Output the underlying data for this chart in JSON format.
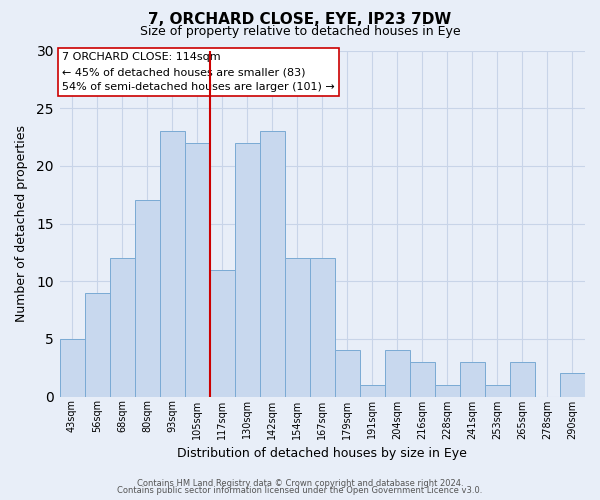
{
  "title": "7, ORCHARD CLOSE, EYE, IP23 7DW",
  "subtitle": "Size of property relative to detached houses in Eye",
  "xlabel": "Distribution of detached houses by size in Eye",
  "ylabel": "Number of detached properties",
  "bar_labels": [
    "43sqm",
    "56sqm",
    "68sqm",
    "80sqm",
    "93sqm",
    "105sqm",
    "117sqm",
    "130sqm",
    "142sqm",
    "154sqm",
    "167sqm",
    "179sqm",
    "191sqm",
    "204sqm",
    "216sqm",
    "228sqm",
    "241sqm",
    "253sqm",
    "265sqm",
    "278sqm",
    "290sqm"
  ],
  "bar_heights": [
    5,
    9,
    12,
    17,
    23,
    22,
    11,
    22,
    23,
    12,
    12,
    4,
    1,
    4,
    3,
    1,
    3,
    1,
    3,
    0,
    2
  ],
  "bar_color": "#c8d8ee",
  "bar_edge_color": "#7aaad4",
  "grid_color": "#c8d4e8",
  "background_color": "#e8eef8",
  "plot_bg_color": "#e8eef8",
  "vline_x_index": 6.0,
  "vline_color": "#cc0000",
  "annotation_lines": [
    "7 ORCHARD CLOSE: 114sqm",
    "← 45% of detached houses are smaller (83)",
    "54% of semi-detached houses are larger (101) →"
  ],
  "annotation_box_color": "#ffffff",
  "annotation_box_edge": "#cc0000",
  "ylim": [
    0,
    30
  ],
  "yticks": [
    0,
    5,
    10,
    15,
    20,
    25,
    30
  ],
  "footer1": "Contains HM Land Registry data © Crown copyright and database right 2024.",
  "footer2": "Contains public sector information licensed under the Open Government Licence v3.0."
}
